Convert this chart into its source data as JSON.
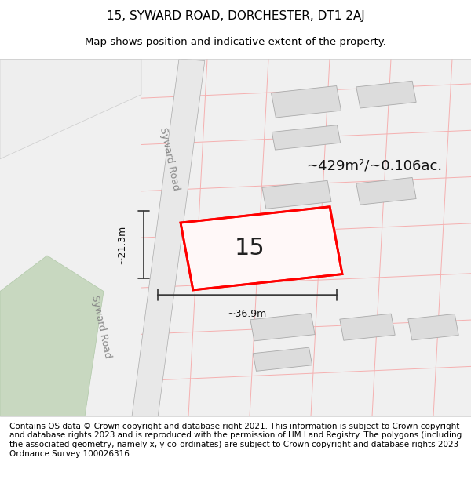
{
  "title_line1": "15, SYWARD ROAD, DORCHESTER, DT1 2AJ",
  "title_line2": "Map shows position and indicative extent of the property.",
  "footer_text": "Contains OS data © Crown copyright and database right 2021. This information is subject to Crown copyright and database rights 2023 and is reproduced with the permission of HM Land Registry. The polygons (including the associated geometry, namely x, y co-ordinates) are subject to Crown copyright and database rights 2023 Ordnance Survey 100026316.",
  "area_label": "~429m²/~0.106ac.",
  "number_label": "15",
  "width_label": "~36.9m",
  "height_label": "~21.3m",
  "road_label_upper": "Syward Road",
  "road_label_lower": "Syward Road",
  "bg_color": "#ffffff",
  "map_bg": "#f5f5f5",
  "road_fill": "#e8e8e8",
  "building_fill": "#e0e0e0",
  "property_outline_color": "#ff0000",
  "road_line_color": "#c8a0a0",
  "dim_line_color": "#333333",
  "title_fontsize": 11,
  "subtitle_fontsize": 9.5,
  "footer_fontsize": 7.5,
  "label_fontsize": 13,
  "number_fontsize": 22,
  "road_label_fontsize": 9
}
